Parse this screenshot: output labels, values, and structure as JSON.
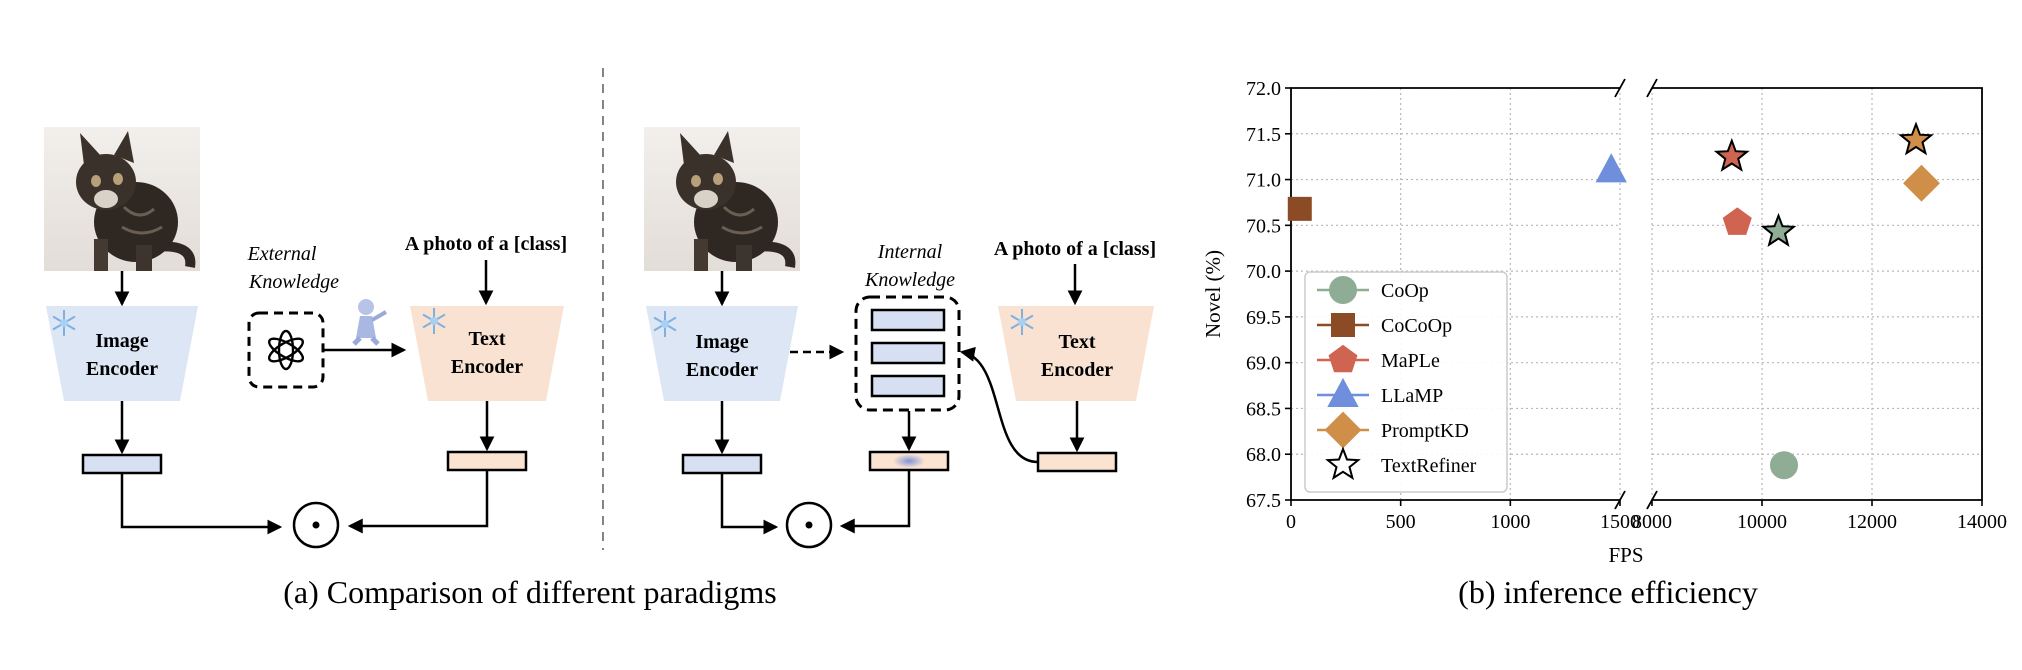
{
  "panel_a": {
    "caption": "(a)  Comparison of different paradigms",
    "left": {
      "image_encoder": [
        "Image",
        "Encoder"
      ],
      "external_knowledge": [
        "External",
        "Knowledge"
      ],
      "prompt": "A photo of a [class]",
      "text_encoder": [
        "Text",
        "Encoder"
      ],
      "dot": "⊙"
    },
    "right": {
      "image_encoder": [
        "Image",
        "Encoder"
      ],
      "internal_knowledge": [
        "Internal",
        "Knowledge"
      ],
      "prompt": "A photo of a [class]",
      "text_encoder": [
        "Text",
        "Encoder"
      ],
      "dot": "⊙"
    },
    "colors": {
      "image_encoder": "#dce6f4",
      "text_encoder": "#f9e2d1",
      "token_blue": "#d6e0f2",
      "token_peach": "#fbe3d2"
    }
  },
  "panel_b": {
    "caption": "(b) inference efficiency"
  },
  "chart_data": {
    "type": "scatter",
    "xlabel": "FPS",
    "ylabel": "Novel (%)",
    "ylim": [
      67.5,
      72.0
    ],
    "y_ticks": [
      "67.5",
      "68.0",
      "68.5",
      "69.0",
      "69.5",
      "70.0",
      "70.5",
      "71.0",
      "71.5",
      "72.0"
    ],
    "x_segments": [
      {
        "xlim": [
          0,
          1500
        ],
        "ticks": [
          "0",
          "500",
          "1000",
          "1500"
        ]
      },
      {
        "xlim": [
          8000,
          14000
        ],
        "ticks": [
          "8000",
          "10000",
          "12000",
          "14000"
        ]
      }
    ],
    "broken_x_axis": true,
    "grid": true,
    "legend_position": "lower-left",
    "series": [
      {
        "name": "CoOp",
        "marker": "circle",
        "color": "#8fad94",
        "points": [
          [
            10400,
            67.88
          ]
        ]
      },
      {
        "name": "CoCoOp",
        "marker": "square",
        "color": "#8b4c25",
        "points": [
          [
            40,
            70.68
          ]
        ]
      },
      {
        "name": "MaPLe",
        "marker": "pentagon",
        "color": "#cf6450",
        "points": [
          [
            9550,
            70.53
          ]
        ]
      },
      {
        "name": "LLaMP",
        "marker": "triangle",
        "color": "#6f8fdc",
        "points": [
          [
            1460,
            71.1
          ]
        ]
      },
      {
        "name": "PromptKD",
        "marker": "diamond",
        "color": "#d08f48",
        "points": [
          [
            12900,
            70.96
          ]
        ]
      },
      {
        "name": "TextRefiner",
        "marker": "star",
        "color": "none",
        "points": [
          [
            10300,
            70.43
          ],
          [
            9450,
            71.25
          ],
          [
            12800,
            71.43
          ]
        ],
        "point_fill": [
          "#8fad94",
          "#cf6450",
          "#d08f48"
        ]
      }
    ]
  }
}
